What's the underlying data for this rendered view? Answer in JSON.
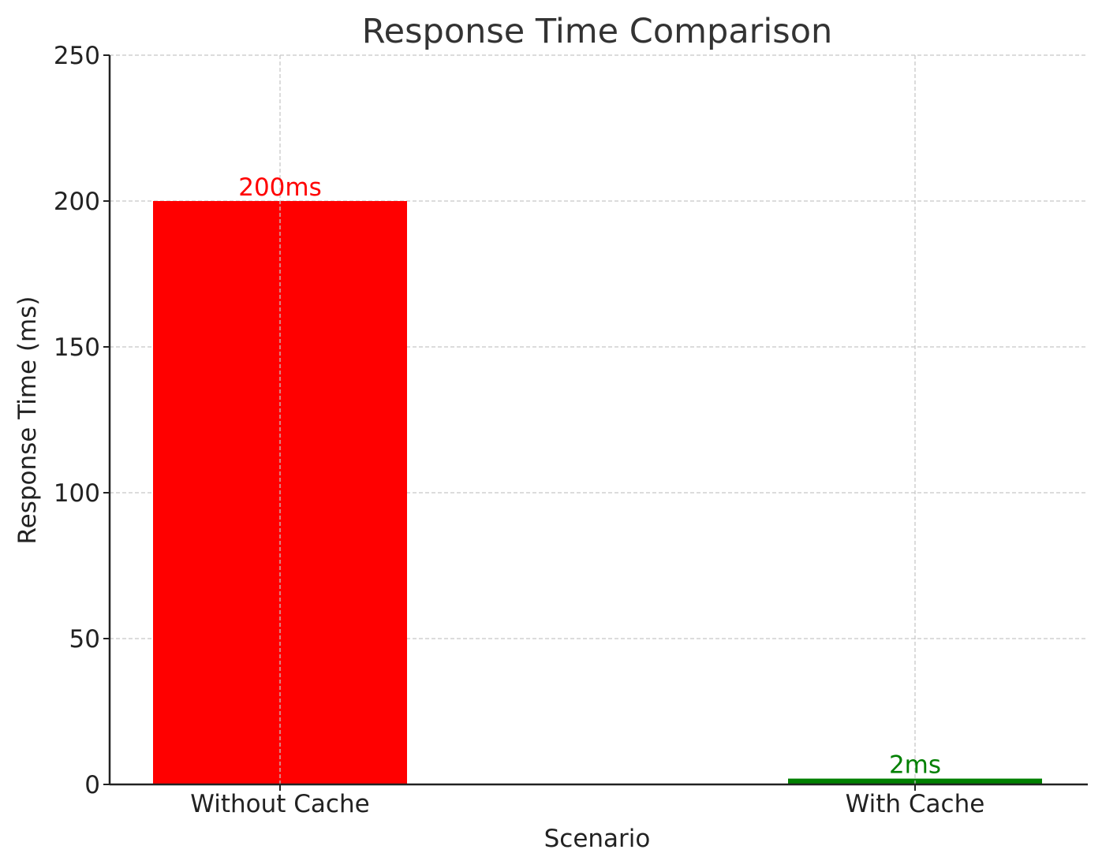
{
  "chart_data": {
    "type": "bar",
    "title": "Response Time Comparison",
    "xlabel": "Scenario",
    "ylabel": "Response Time (ms)",
    "categories": [
      "Without Cache",
      "With Cache"
    ],
    "values": [
      200,
      2
    ],
    "data_labels": [
      "200ms",
      "2ms"
    ],
    "colors": [
      "#ff0000",
      "#008000"
    ],
    "ylim": [
      0,
      250
    ],
    "yticks": [
      0,
      50,
      100,
      150,
      200,
      250
    ],
    "grid": true,
    "legend": "none"
  }
}
